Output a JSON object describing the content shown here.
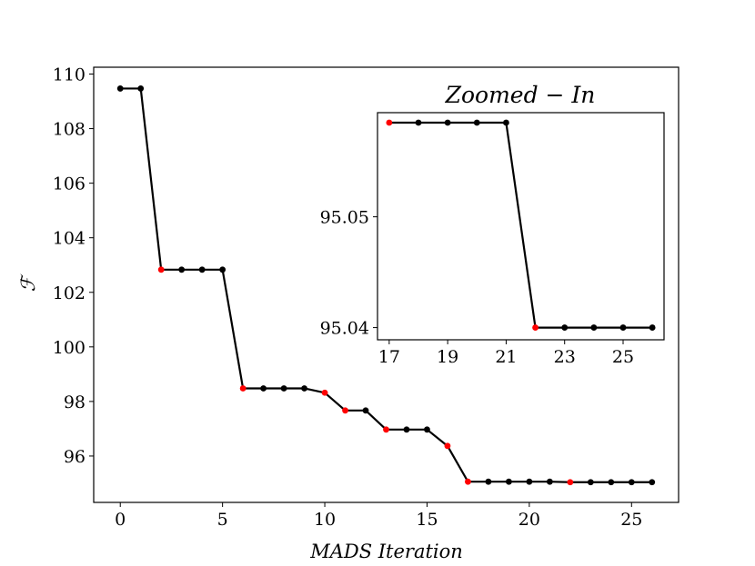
{
  "chart_data": [
    {
      "type": "line",
      "name": "main",
      "xlabel": "MADS Iteration",
      "ylabel": "ℱ",
      "xlim": [
        -1.3,
        27.3
      ],
      "ylim": [
        94.3,
        110.25
      ],
      "xticks": [
        0,
        5,
        10,
        15,
        20,
        25
      ],
      "yticks": [
        96,
        98,
        100,
        102,
        104,
        106,
        108,
        110
      ],
      "x": [
        0,
        1,
        2,
        3,
        4,
        5,
        6,
        7,
        8,
        9,
        10,
        11,
        12,
        13,
        14,
        15,
        16,
        17,
        18,
        19,
        20,
        21,
        22,
        23,
        24,
        25,
        26
      ],
      "y": [
        109.47,
        109.47,
        102.83,
        102.83,
        102.83,
        102.83,
        98.48,
        98.48,
        98.48,
        98.48,
        98.32,
        97.67,
        97.67,
        96.97,
        96.97,
        96.97,
        96.37,
        95.06,
        95.06,
        95.06,
        95.06,
        95.06,
        95.04,
        95.04,
        95.04,
        95.04,
        95.04
      ],
      "highlight": [
        2,
        6,
        10,
        11,
        13,
        16,
        17,
        22
      ],
      "colors": {
        "line": "#000000",
        "point": "#000000",
        "highlight": "#ff0000"
      }
    },
    {
      "type": "line",
      "name": "inset",
      "title": "Zoomed − In",
      "xlim": [
        16.6,
        26.4
      ],
      "ylim": [
        95.0389,
        95.0594
      ],
      "xticks": [
        17,
        19,
        21,
        23,
        25
      ],
      "yticks": [
        95.04,
        95.05
      ],
      "ytick_labels": [
        "95.04",
        "95.05"
      ],
      "x": [
        17,
        18,
        19,
        20,
        21,
        22,
        23,
        24,
        25,
        26
      ],
      "y": [
        95.0585,
        95.0585,
        95.0585,
        95.0585,
        95.0585,
        95.04,
        95.04,
        95.04,
        95.04,
        95.04
      ],
      "highlight": [
        17,
        22
      ],
      "colors": {
        "line": "#000000",
        "point": "#000000",
        "highlight": "#ff0000"
      }
    }
  ]
}
